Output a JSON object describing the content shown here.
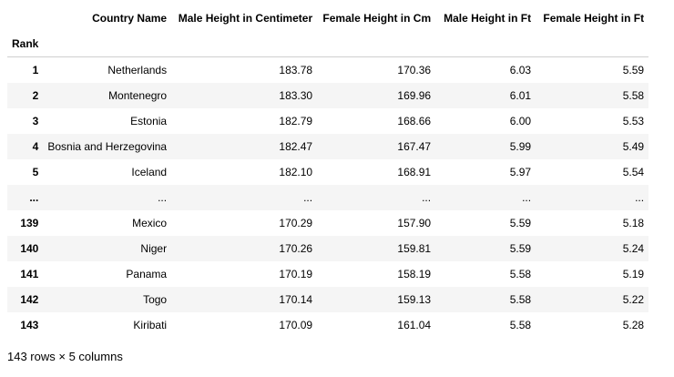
{
  "table": {
    "index_name": "Rank",
    "columns": [
      "Country Name",
      "Male Height in Centimeter",
      "Female Height in Cm",
      "Male Height in Ft",
      "Female Height in Ft"
    ],
    "rows": [
      {
        "rank": "1",
        "cells": [
          "Netherlands",
          "183.78",
          "170.36",
          "6.03",
          "5.59"
        ]
      },
      {
        "rank": "2",
        "cells": [
          "Montenegro",
          "183.30",
          "169.96",
          "6.01",
          "5.58"
        ]
      },
      {
        "rank": "3",
        "cells": [
          "Estonia",
          "182.79",
          "168.66",
          "6.00",
          "5.53"
        ]
      },
      {
        "rank": "4",
        "cells": [
          "Bosnia and Herzegovina",
          "182.47",
          "167.47",
          "5.99",
          "5.49"
        ]
      },
      {
        "rank": "5",
        "cells": [
          "Iceland",
          "182.10",
          "168.91",
          "5.97",
          "5.54"
        ]
      },
      {
        "rank": "...",
        "cells": [
          "...",
          "...",
          "...",
          "...",
          "..."
        ]
      },
      {
        "rank": "139",
        "cells": [
          "Mexico",
          "170.29",
          "157.90",
          "5.59",
          "5.18"
        ]
      },
      {
        "rank": "140",
        "cells": [
          "Niger",
          "170.26",
          "159.81",
          "5.59",
          "5.24"
        ]
      },
      {
        "rank": "141",
        "cells": [
          "Panama",
          "170.19",
          "158.19",
          "5.58",
          "5.19"
        ]
      },
      {
        "rank": "142",
        "cells": [
          "Togo",
          "170.14",
          "159.13",
          "5.58",
          "5.22"
        ]
      },
      {
        "rank": "143",
        "cells": [
          "Kiribati",
          "170.09",
          "161.04",
          "5.58",
          "5.28"
        ]
      }
    ]
  },
  "footer": {
    "shape_text": "143 rows × 5 columns"
  }
}
